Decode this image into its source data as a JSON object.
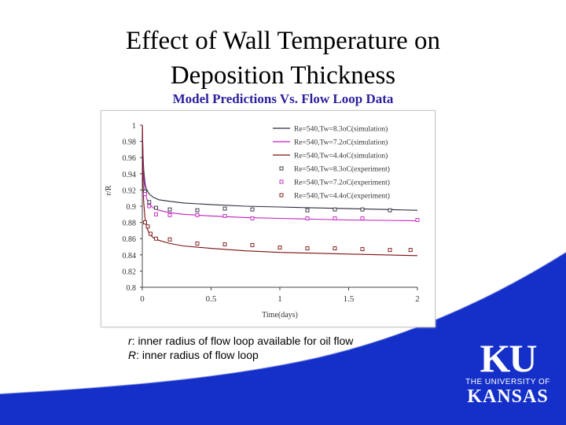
{
  "slide": {
    "title_line1": "Effect of Wall Temperature on",
    "title_line2": "Deposition Thickness",
    "subtitle": "Model Predictions Vs. Flow Loop Data",
    "caption_line1_var": "r",
    "caption_line1_text": ": inner radius of flow loop available for oil flow",
    "caption_line2_var": "R",
    "caption_line2_text": ": inner radius of flow loop",
    "logo_mark": "KU",
    "logo_line1": "THE UNIVERSITY OF",
    "logo_line2": "KANSAS"
  },
  "colors": {
    "title": "#000000",
    "subtitle": "#2a1f9c",
    "swoosh": "#1530c8",
    "series_8_3": "#2a2a3a",
    "series_7_2": "#c020c0",
    "series_4_4": "#7a1010"
  },
  "chart_data": {
    "type": "line",
    "xlabel": "Time(days)",
    "ylabel": "r/R",
    "xlim": [
      0,
      2
    ],
    "ylim": [
      0.8,
      1.0
    ],
    "x_ticks": [
      "0",
      "0.5",
      "1",
      "1.5",
      "2"
    ],
    "y_ticks": [
      "0.8",
      "0.82",
      "0.84",
      "0.86",
      "0.88",
      "0.9",
      "0.92",
      "0.94",
      "0.96",
      "0.98",
      "1"
    ],
    "legend_position": "top-right",
    "series": [
      {
        "name": "Re=540,Tw=8.3oC(simulation)",
        "kind": "line",
        "color": "#2a2a3a",
        "x": [
          0,
          0.005,
          0.01,
          0.02,
          0.03,
          0.05,
          0.08,
          0.12,
          0.2,
          0.3,
          0.5,
          0.75,
          1.0,
          1.25,
          1.5,
          1.75,
          2.0
        ],
        "y": [
          1.0,
          0.965,
          0.945,
          0.928,
          0.921,
          0.915,
          0.911,
          0.908,
          0.906,
          0.904,
          0.902,
          0.9,
          0.899,
          0.898,
          0.897,
          0.896,
          0.895
        ]
      },
      {
        "name": "Re=540,Tw=7.2oC(simulation)",
        "kind": "line",
        "color": "#c020c0",
        "x": [
          0,
          0.005,
          0.01,
          0.02,
          0.03,
          0.05,
          0.08,
          0.12,
          0.2,
          0.3,
          0.5,
          0.75,
          1.0,
          1.25,
          1.5,
          1.75,
          2.0
        ],
        "y": [
          1.0,
          0.955,
          0.935,
          0.918,
          0.91,
          0.903,
          0.898,
          0.895,
          0.892,
          0.89,
          0.888,
          0.886,
          0.885,
          0.884,
          0.883,
          0.8825,
          0.882
        ]
      },
      {
        "name": "Re=540,Tw=4.4oC(simulation)",
        "kind": "line",
        "color": "#7a1010",
        "x": [
          0,
          0.005,
          0.01,
          0.02,
          0.03,
          0.05,
          0.08,
          0.12,
          0.2,
          0.3,
          0.5,
          0.75,
          1.0,
          1.25,
          1.5,
          1.75,
          2.0
        ],
        "y": [
          1.0,
          0.93,
          0.905,
          0.885,
          0.875,
          0.866,
          0.861,
          0.858,
          0.854,
          0.851,
          0.848,
          0.845,
          0.843,
          0.842,
          0.841,
          0.84,
          0.839
        ]
      },
      {
        "name": "Re=540,Tw=8.3oC(experiment)",
        "kind": "scatter",
        "color": "#2a2a3a",
        "x": [
          0.02,
          0.05,
          0.1,
          0.2,
          0.4,
          0.6,
          0.8,
          1.2,
          1.4,
          1.6,
          1.8
        ],
        "y": [
          0.918,
          0.905,
          0.898,
          0.896,
          0.895,
          0.897,
          0.896,
          0.895,
          0.896,
          0.896,
          0.895
        ]
      },
      {
        "name": "Re=540,Tw=7.2oC(experiment)",
        "kind": "scatter",
        "color": "#c020c0",
        "x": [
          0.02,
          0.05,
          0.1,
          0.2,
          0.4,
          0.6,
          0.8,
          1.2,
          1.4,
          1.6,
          2.0
        ],
        "y": [
          0.915,
          0.9,
          0.89,
          0.889,
          0.889,
          0.888,
          0.885,
          0.885,
          0.885,
          0.885,
          0.883
        ]
      },
      {
        "name": "Re=540,Tw=4.4oC(experiment)",
        "kind": "scatter",
        "color": "#7a1010",
        "x": [
          0.02,
          0.04,
          0.06,
          0.1,
          0.2,
          0.4,
          0.6,
          0.8,
          1.0,
          1.2,
          1.4,
          1.6,
          1.8,
          1.95
        ],
        "y": [
          0.88,
          0.875,
          0.866,
          0.86,
          0.859,
          0.854,
          0.853,
          0.852,
          0.849,
          0.848,
          0.848,
          0.847,
          0.846,
          0.846
        ]
      }
    ]
  }
}
